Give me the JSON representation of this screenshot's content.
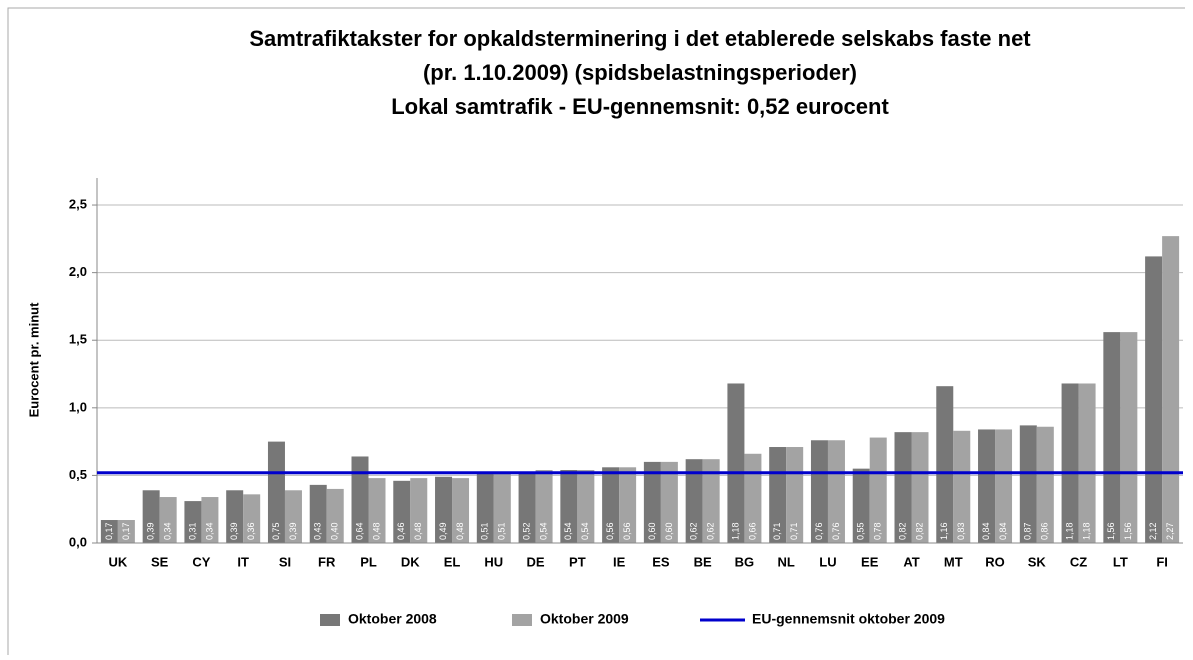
{
  "chart_data": {
    "type": "bar",
    "title": "Samtrafiktakster for opkaldsterminering i det etablerede selskabs faste net",
    "subtitle": "(pr. 1.10.2009) (spidsbelastningsperioder)",
    "subtitle2": "Lokal samtrafik - EU-gennemsnit: 0,52 eurocent",
    "y_label": "Eurocent pr. minut",
    "categories": [
      "UK",
      "SE",
      "CY",
      "IT",
      "SI",
      "FR",
      "PL",
      "DK",
      "EL",
      "HU",
      "DE",
      "PT",
      "IE",
      "ES",
      "BE",
      "BG",
      "NL",
      "LU",
      "EE",
      "AT",
      "MT",
      "RO",
      "SK",
      "CZ",
      "LT",
      "FI"
    ],
    "series": [
      {
        "name": "Oktober 2008",
        "color": "#777777",
        "values": [
          0.17,
          0.39,
          0.31,
          0.39,
          0.75,
          0.43,
          0.64,
          0.46,
          0.49,
          0.51,
          0.52,
          0.54,
          0.56,
          0.6,
          0.62,
          1.18,
          0.71,
          0.76,
          0.55,
          0.82,
          1.16,
          0.84,
          0.87,
          1.18,
          1.56,
          2.12
        ],
        "value_labels": [
          "0,17",
          "0,39",
          "0,31",
          "0,39",
          "0,75",
          "0,43",
          "0,64",
          "0,46",
          "0,49",
          "0,51",
          "0,52",
          "0,54",
          "0,56",
          "0,60",
          "0,62",
          "1,18",
          "0,71",
          "0,76",
          "0,55",
          "0,82",
          "1,16",
          "0,84",
          "0,87",
          "1,18",
          "1,56",
          "2,12"
        ]
      },
      {
        "name": "Oktober 2009",
        "color": "#a3a3a3",
        "values": [
          0.17,
          0.34,
          0.34,
          0.36,
          0.39,
          0.4,
          0.48,
          0.48,
          0.48,
          0.51,
          0.54,
          0.54,
          0.56,
          0.6,
          0.62,
          0.66,
          0.71,
          0.76,
          0.78,
          0.82,
          0.83,
          0.84,
          0.86,
          1.18,
          1.56,
          2.27
        ],
        "value_labels": [
          "0,17",
          "0,34",
          "0,34",
          "0,36",
          "0,39",
          "0,40",
          "0,48",
          "0,48",
          "0,48",
          "0,51",
          "0,54",
          "0,54",
          "0,56",
          "0,60",
          "0,62",
          "0,66",
          "0,71",
          "0,76",
          "0,78",
          "0,82",
          "0,83",
          "0,84",
          "0,86",
          "1,18",
          "1,56",
          "2,27"
        ]
      }
    ],
    "reference": {
      "name": "EU-gennemsnit oktober 2009",
      "value": 0.52,
      "color": "#0000cc"
    },
    "ylim": [
      0,
      2.7
    ],
    "yticks": [
      {
        "value": 0,
        "label": "0,0"
      },
      {
        "value": 0.5,
        "label": "0,5"
      },
      {
        "value": 1,
        "label": "1,0"
      },
      {
        "value": 1.5,
        "label": "1,5"
      },
      {
        "value": 2,
        "label": "2,0"
      },
      {
        "value": 2.5,
        "label": "2,5"
      }
    ],
    "grid": true
  }
}
